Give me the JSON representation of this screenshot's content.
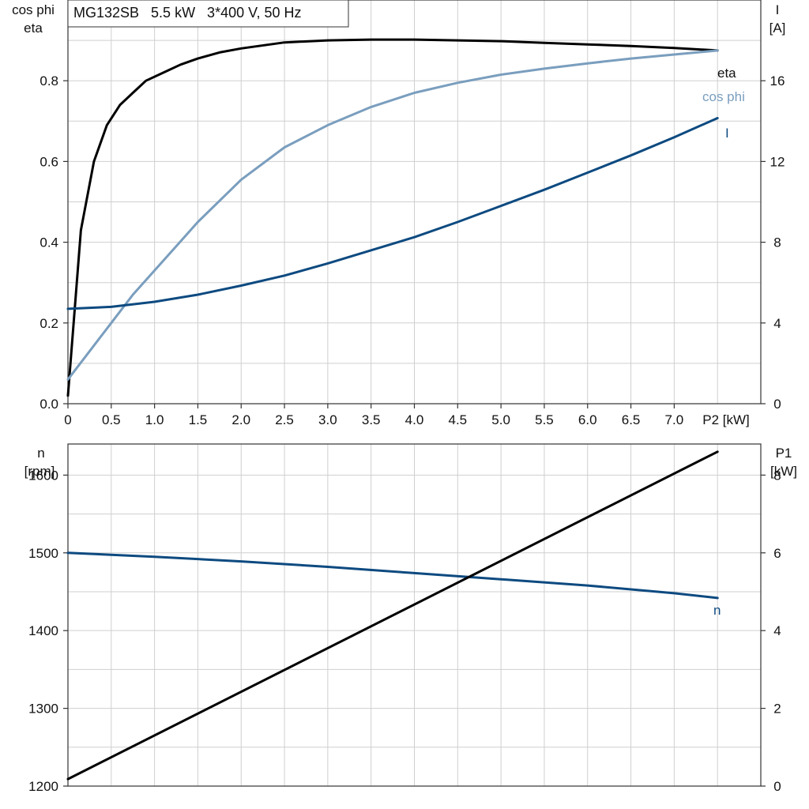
{
  "colors": {
    "eta": "#000000",
    "cosphi": "#7a9ebe",
    "current": "#0d4a80",
    "speed": "#0d4a80",
    "p1": "#000000",
    "grid": "#cfcfcf",
    "frame": "#333333"
  },
  "chart_data": [
    {
      "type": "line",
      "title": "MG132SB   5.5 kW   3*400 V, 50 Hz",
      "xlabel": "P2 [kW]",
      "ylabel_left": [
        "cos phi",
        "eta"
      ],
      "ylabel_right": [
        "I",
        "[A]"
      ],
      "xlim": [
        0,
        8
      ],
      "ylim_left": [
        0,
        1.0
      ],
      "ylim_right": [
        0,
        20
      ],
      "x_ticks": [
        0,
        0.5,
        1.0,
        1.5,
        2.0,
        2.5,
        3.0,
        3.5,
        4.0,
        4.5,
        5.0,
        5.5,
        6.0,
        6.5,
        7.0
      ],
      "x_tick_labels": [
        "0",
        "0.5",
        "1.0",
        "1.5",
        "2.0",
        "2.5",
        "3.0",
        "3.5",
        "4.0",
        "4.5",
        "5.0",
        "5.5",
        "6.0",
        "6.5",
        "7.0"
      ],
      "y_left_ticks": [
        0,
        0.2,
        0.4,
        0.6,
        0.8
      ],
      "y_left_tick_labels": [
        "0.0",
        "0.2",
        "0.4",
        "0.6",
        "0.8"
      ],
      "y_right_ticks": [
        0,
        4,
        8,
        12,
        16
      ],
      "y_right_tick_labels": [
        "0",
        "4",
        "8",
        "12",
        "16"
      ],
      "grid": true,
      "series": [
        {
          "name": "eta",
          "axis": "left",
          "color_key": "eta",
          "x": [
            0,
            0.15,
            0.3,
            0.45,
            0.6,
            0.75,
            0.9,
            1.1,
            1.3,
            1.5,
            1.75,
            2.0,
            2.5,
            3.0,
            3.5,
            4.0,
            4.5,
            5.0,
            5.5,
            6.0,
            6.5,
            7.0,
            7.5
          ],
          "values": [
            0.02,
            0.43,
            0.6,
            0.69,
            0.74,
            0.77,
            0.8,
            0.82,
            0.84,
            0.855,
            0.87,
            0.88,
            0.895,
            0.9,
            0.902,
            0.902,
            0.9,
            0.898,
            0.894,
            0.89,
            0.886,
            0.881,
            0.875
          ]
        },
        {
          "name": "cos phi",
          "axis": "left",
          "color_key": "cosphi",
          "x": [
            0,
            0.25,
            0.5,
            0.75,
            1.0,
            1.25,
            1.5,
            2.0,
            2.5,
            3.0,
            3.5,
            4.0,
            4.5,
            5.0,
            5.5,
            6.0,
            6.5,
            7.0,
            7.5
          ],
          "values": [
            0.06,
            0.13,
            0.2,
            0.27,
            0.33,
            0.39,
            0.45,
            0.555,
            0.635,
            0.69,
            0.735,
            0.77,
            0.795,
            0.815,
            0.83,
            0.843,
            0.855,
            0.865,
            0.875
          ]
        },
        {
          "name": "I",
          "axis": "right",
          "color_key": "current",
          "x": [
            0,
            0.5,
            1.0,
            1.5,
            2.0,
            2.5,
            3.0,
            3.5,
            4.0,
            4.5,
            5.0,
            5.5,
            6.0,
            6.5,
            7.0,
            7.5
          ],
          "values": [
            4.7,
            4.8,
            5.05,
            5.4,
            5.85,
            6.35,
            6.95,
            7.6,
            8.25,
            9.0,
            9.8,
            10.6,
            11.45,
            12.3,
            13.2,
            14.15
          ]
        }
      ]
    },
    {
      "type": "line",
      "ylabel_left": [
        "n",
        "[rpm]"
      ],
      "ylabel_right": [
        "P1",
        "[kW]"
      ],
      "xlim": [
        0,
        8
      ],
      "ylim_left": [
        1200,
        1640
      ],
      "ylim_right": [
        0,
        8.8
      ],
      "y_left_ticks": [
        1200,
        1300,
        1400,
        1500,
        1600
      ],
      "y_left_tick_labels": [
        "1200",
        "1300",
        "1400",
        "1500",
        "1600"
      ],
      "y_right_ticks": [
        0,
        2,
        4,
        6,
        8
      ],
      "y_right_tick_labels": [
        "0",
        "2",
        "4",
        "6",
        "8"
      ],
      "grid": true,
      "series": [
        {
          "name": "n",
          "axis": "left",
          "color_key": "speed",
          "x": [
            0,
            1.0,
            2.0,
            3.0,
            4.0,
            5.0,
            6.0,
            7.0,
            7.5
          ],
          "values": [
            1500,
            1495,
            1489,
            1482,
            1474,
            1466,
            1458,
            1448,
            1442
          ]
        },
        {
          "name": "",
          "axis": "right",
          "color_key": "p1",
          "x": [
            0,
            7.5
          ],
          "values": [
            0.18,
            8.6
          ]
        }
      ]
    }
  ]
}
